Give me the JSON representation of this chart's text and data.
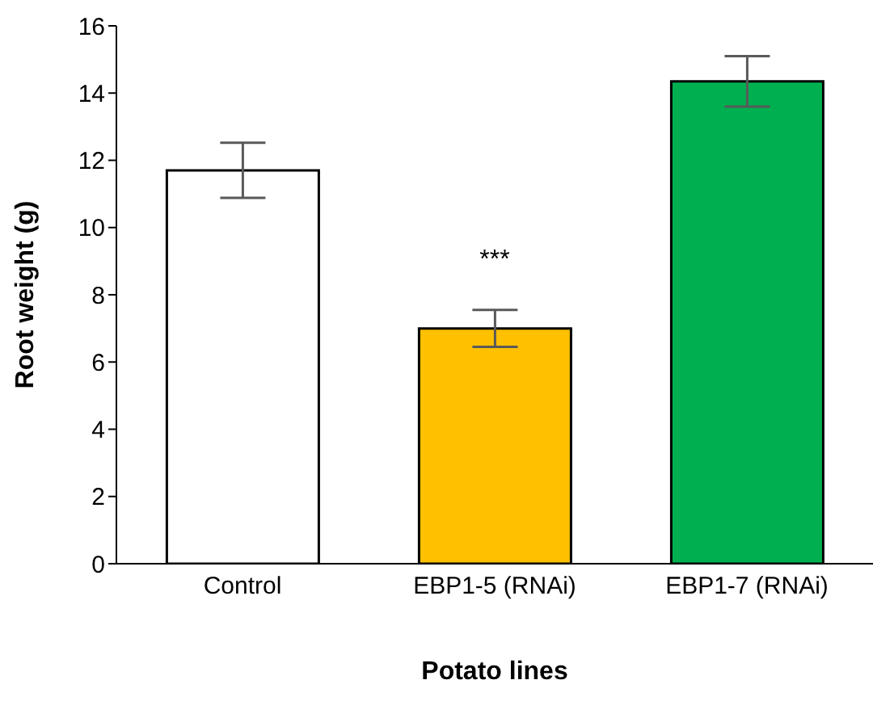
{
  "chart_data": {
    "type": "bar",
    "xlabel": "Potato lines",
    "ylabel": "Root weight  (g)",
    "categories": [
      "Control",
      "EBP1-5 (RNAi)",
      "EBP1-7 (RNAi)"
    ],
    "values": [
      11.7,
      7.0,
      14.35
    ],
    "colors": [
      "#ffffff",
      "#ffc000",
      "#00b050"
    ],
    "errors": [
      0.82,
      0.55,
      0.75
    ],
    "ylim": [
      0,
      16
    ],
    "yticks": [
      0,
      2,
      4,
      6,
      8,
      10,
      12,
      14,
      16
    ],
    "grid": false,
    "annotations": [
      {
        "text": "***",
        "x": "EBP1-5 (RNAi)",
        "y": 7.0
      }
    ]
  }
}
